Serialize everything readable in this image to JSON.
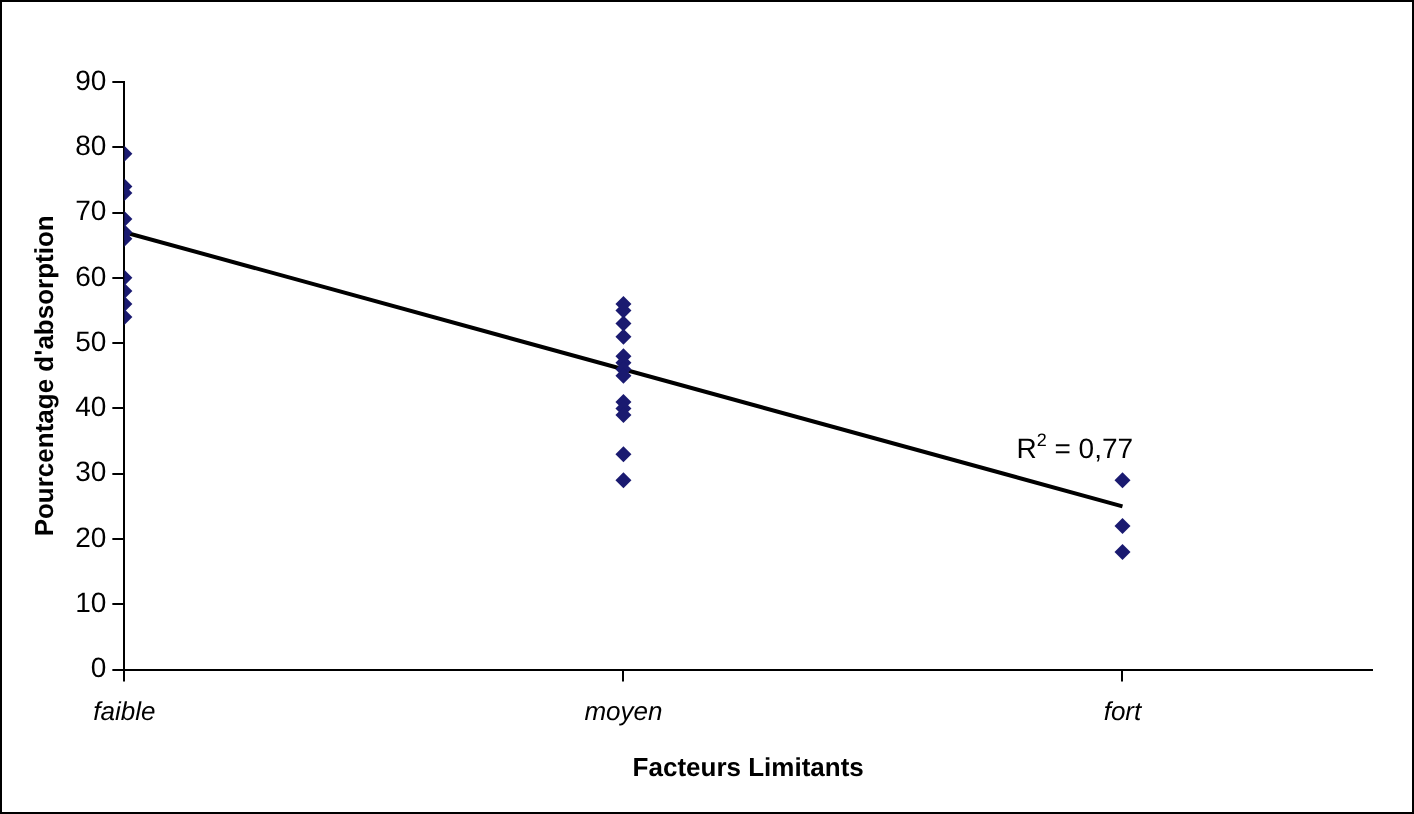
{
  "chart_data": {
    "type": "scatter",
    "xlabel": "Facteurs Limitants",
    "ylabel": "Pourcentage d'absorption",
    "grid": false,
    "legend": false,
    "categories": [
      "faible",
      "moyen",
      "fort"
    ],
    "ylim": [
      0,
      90
    ],
    "yticks": [
      0,
      10,
      20,
      30,
      40,
      50,
      60,
      70,
      80,
      90
    ],
    "series": [
      {
        "color": "#1a1a70",
        "marker": "diamond",
        "x": [
          "faible",
          "faible",
          "faible",
          "faible",
          "faible",
          "faible",
          "faible",
          "faible",
          "faible",
          "faible",
          "moyen",
          "moyen",
          "moyen",
          "moyen",
          "moyen",
          "moyen",
          "moyen",
          "moyen",
          "moyen",
          "moyen",
          "moyen",
          "moyen",
          "moyen",
          "fort",
          "fort",
          "fort"
        ],
        "values": [
          79,
          74,
          73,
          69,
          67,
          66,
          60,
          58,
          56,
          54,
          56,
          55,
          53,
          51,
          48,
          47,
          46,
          45,
          41,
          40,
          39,
          33,
          29,
          29,
          22,
          18
        ]
      },
      {
        "type": "line",
        "marker": "none",
        "color": "#000000",
        "x": [
          "faible",
          "fort"
        ],
        "values": [
          67,
          25
        ]
      }
    ],
    "annotations": [
      "R$^{2}$ = 0,77"
    ]
  }
}
